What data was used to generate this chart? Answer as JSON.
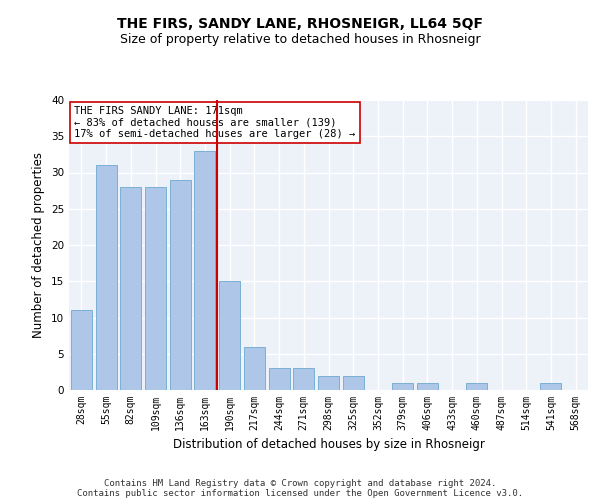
{
  "title": "THE FIRS, SANDY LANE, RHOSNEIGR, LL64 5QF",
  "subtitle": "Size of property relative to detached houses in Rhosneigr",
  "xlabel": "Distribution of detached houses by size in Rhosneigr",
  "ylabel": "Number of detached properties",
  "categories": [
    "28sqm",
    "55sqm",
    "82sqm",
    "109sqm",
    "136sqm",
    "163sqm",
    "190sqm",
    "217sqm",
    "244sqm",
    "271sqm",
    "298sqm",
    "325sqm",
    "352sqm",
    "379sqm",
    "406sqm",
    "433sqm",
    "460sqm",
    "487sqm",
    "514sqm",
    "541sqm",
    "568sqm"
  ],
  "values": [
    11,
    31,
    28,
    28,
    29,
    33,
    15,
    6,
    3,
    3,
    2,
    2,
    0,
    1,
    1,
    0,
    1,
    0,
    0,
    1,
    0
  ],
  "bar_color": "#aec6e8",
  "bar_edgecolor": "#7aafd4",
  "vline_x": 5.5,
  "vline_color": "#cc0000",
  "ylim": [
    0,
    40
  ],
  "yticks": [
    0,
    5,
    10,
    15,
    20,
    25,
    30,
    35,
    40
  ],
  "annotation_text": "THE FIRS SANDY LANE: 171sqm\n← 83% of detached houses are smaller (139)\n17% of semi-detached houses are larger (28) →",
  "annotation_box_color": "#ffffff",
  "annotation_box_edgecolor": "#cc0000",
  "footer_line1": "Contains HM Land Registry data © Crown copyright and database right 2024.",
  "footer_line2": "Contains public sector information licensed under the Open Government Licence v3.0.",
  "background_color": "#edf2f9",
  "grid_color": "#ffffff",
  "title_fontsize": 10,
  "subtitle_fontsize": 9,
  "axis_label_fontsize": 8.5,
  "tick_fontsize": 7,
  "annotation_fontsize": 7.5,
  "footer_fontsize": 6.5
}
